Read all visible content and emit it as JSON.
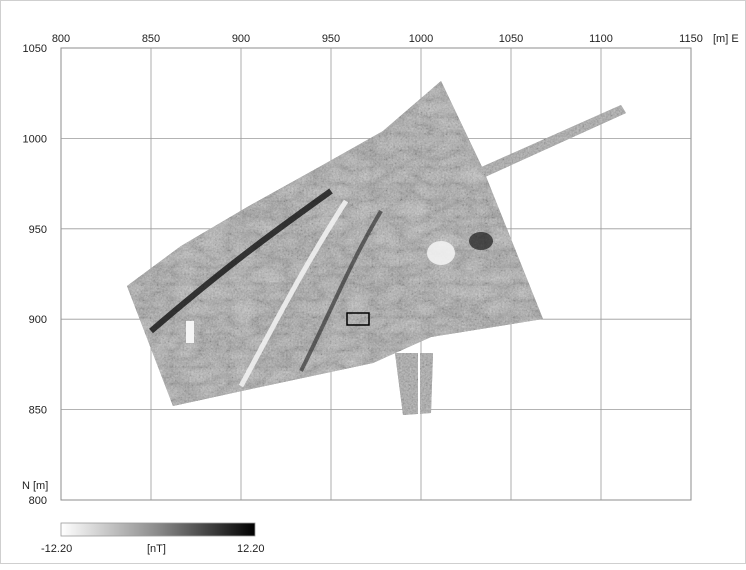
{
  "map": {
    "x_axis": {
      "ticks": [
        "800",
        "850",
        "900",
        "950",
        "1000",
        "1050",
        "1100",
        "1150"
      ],
      "unit_label": "[m] E",
      "range": [
        800,
        1150
      ]
    },
    "y_axis": {
      "ticks": [
        "1050",
        "1000",
        "950",
        "900",
        "850",
        "800"
      ],
      "unit_label": "N [m]",
      "range": [
        800,
        1050
      ]
    },
    "grid": true,
    "survey_fill": "magnetic gradiometer texture",
    "colors": {
      "grid": "#9a9a9a",
      "frame": "#8c8c8c",
      "survey_mid": "#8a8a8a"
    }
  },
  "colorbar": {
    "min_label": "-12.20",
    "unit_label": "[nT]",
    "max_label": "12.20",
    "gradient_from": "#ffffff",
    "gradient_to": "#000000"
  }
}
